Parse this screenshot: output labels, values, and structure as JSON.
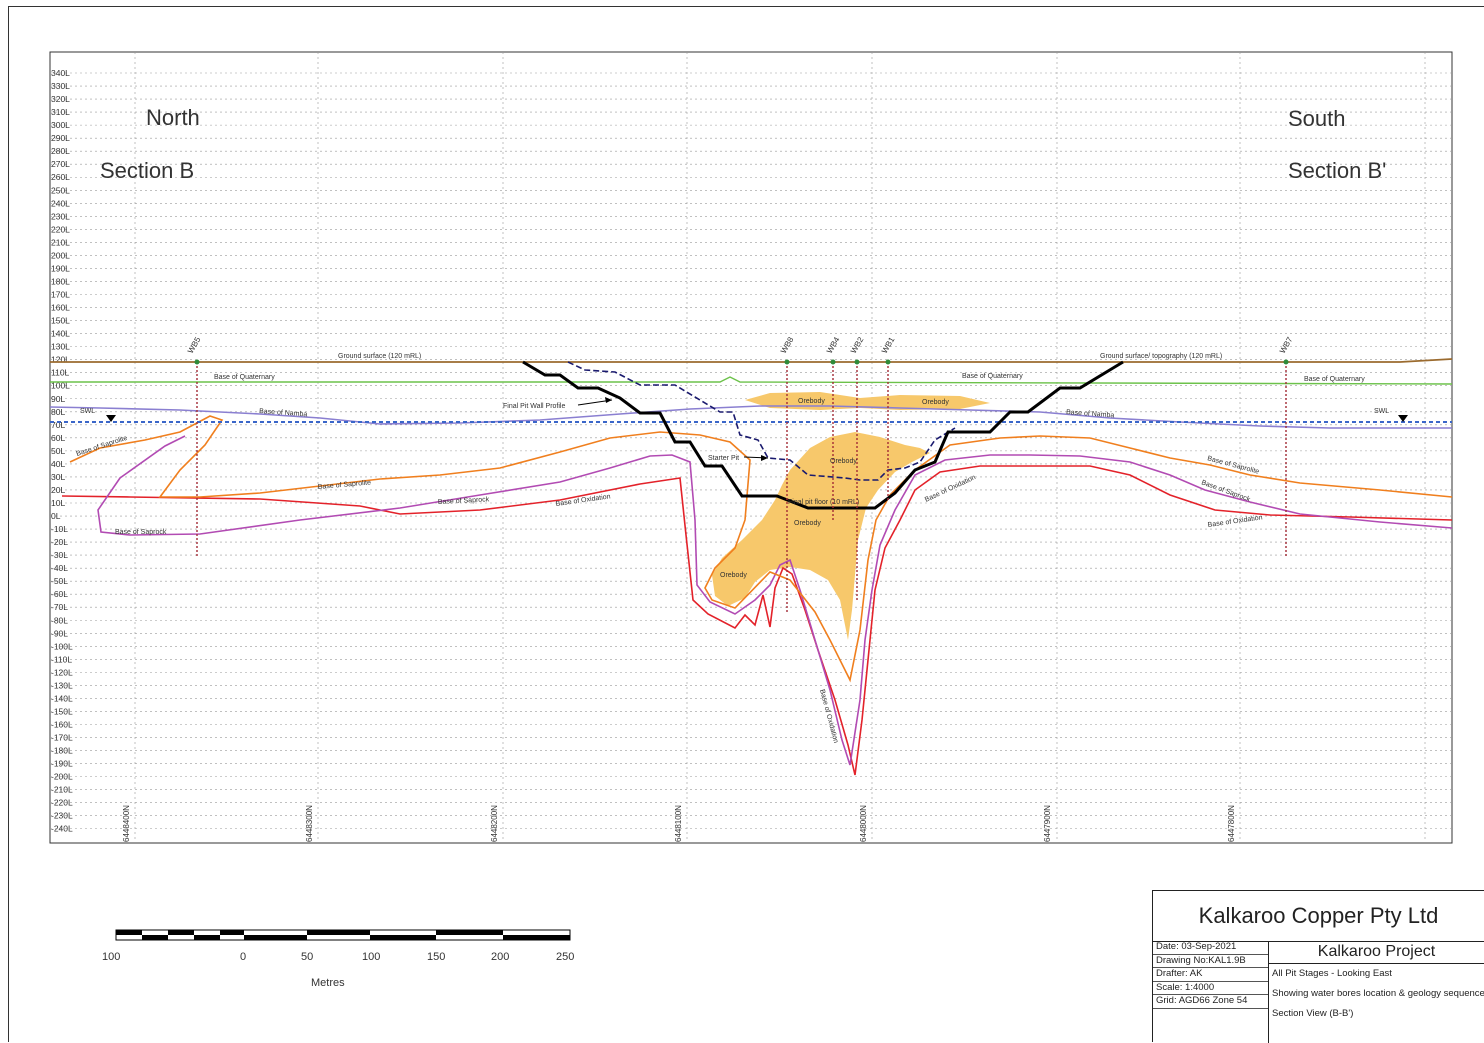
{
  "section": {
    "north_label": "North",
    "south_label": "South",
    "section_start": "Section B",
    "section_end": "Section B'"
  },
  "rl_labels": [
    "340L",
    "330L",
    "320L",
    "310L",
    "300L",
    "290L",
    "280L",
    "270L",
    "260L",
    "250L",
    "240L",
    "230L",
    "220L",
    "210L",
    "200L",
    "190L",
    "180L",
    "170L",
    "160L",
    "150L",
    "140L",
    "130L",
    "120L",
    "110L",
    "100L",
    "90L",
    "80L",
    "70L",
    "60L",
    "50L",
    "40L",
    "30L",
    "20L",
    "10L",
    "0L",
    "-10L",
    "-20L",
    "-30L",
    "-40L",
    "-50L",
    "-60L",
    "-70L",
    "-80L",
    "-90L",
    "-100L",
    "-110L",
    "-120L",
    "-130L",
    "-140L",
    "-150L",
    "-160L",
    "-170L",
    "-180L",
    "-190L",
    "-200L",
    "-210L",
    "-220L",
    "-230L",
    "-240L"
  ],
  "northing_labels": [
    "6448400N",
    "6448300N",
    "6448200N",
    "6448100N",
    "6448000N",
    "6447900N",
    "6447800N"
  ],
  "bores": [
    "WB5",
    "WB8",
    "WB4",
    "WB2",
    "WB1",
    "WB7"
  ],
  "labels": {
    "ground_surface": "Ground surface (120 mRL)",
    "ground_surface_south": "Ground surface/ topography (120 mRL)",
    "base_quaternary": "Base of Quaternary",
    "base_quaternary_mid": "Base of Quaternary",
    "base_quaternary_south": "Base of Quaternary",
    "base_namba": "Base of Namba",
    "base_namba_south": "Base of Namba",
    "swl": "SWL",
    "swl_south": "SWL",
    "base_saprolite": "Base of Saprolite",
    "base_saprolite_mid": "Base of Saprolite",
    "base_saprolite_south": "Base of Saprolite",
    "base_saprock": "Base of Saprock",
    "base_saprock_mid": "Base of Saprock",
    "base_saprock_south": "Base of Saprock",
    "base_oxidation_mid": "Base of Oxidation",
    "base_oxidation_east": "Base of Oxidation",
    "base_oxidation_south": "Base of Oxidation",
    "base_oxidation_deep": "Base of Oxidation",
    "final_pit_wall": "Final Pit Wall Profile",
    "starter_pit": "Starter Pit",
    "final_pit_floor": "Final pit floor (10 mRL)",
    "orebody_1": "Orebody",
    "orebody_2": "Orebody",
    "orebody_3": "Orebody",
    "orebody_4": "Orebody",
    "orebody_5": "Orebody"
  },
  "scale_bar": {
    "ticks": [
      "100",
      "0",
      "50",
      "100",
      "150",
      "200",
      "250"
    ],
    "unit": "Metres"
  },
  "title_block": {
    "company": "Kalkaroo Copper Pty Ltd",
    "project": "Kalkaroo Project",
    "date": "Date: 03-Sep-2021",
    "drawing_no": "Drawing No:KAL1.9B",
    "drafter": "Drafter: AK",
    "scale": "Scale: 1:4000",
    "grid": "Grid: AGD66 Zone 54",
    "desc1": "All Pit Stages - Looking East",
    "desc2": "Showing water bores location & geology sequence",
    "desc3": "Section View (B-B')"
  },
  "colors": {
    "ground": "#9b6b2f",
    "quaternary": "#6cc24a",
    "namba": "#8a7fd1",
    "swl": "#3a66c9",
    "saprolite": "#f07f1e",
    "saprock": "#b24bb3",
    "oxidation": "#e3222a",
    "orebody": "#f7c86b",
    "pit": "#000000",
    "bore": "#a32b35"
  }
}
